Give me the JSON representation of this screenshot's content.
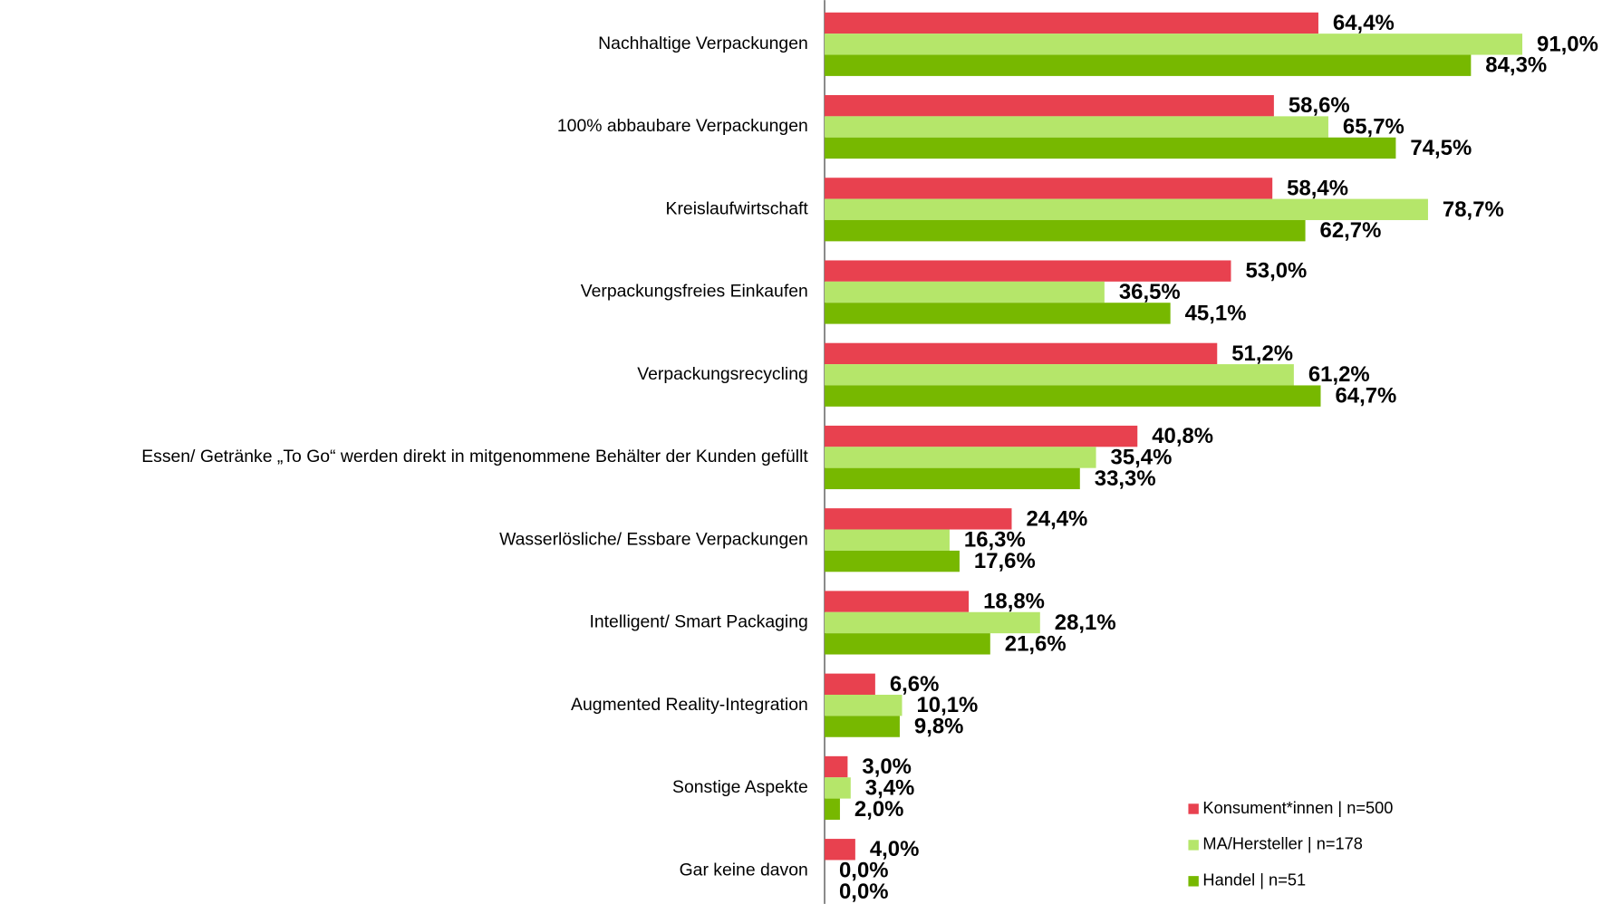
{
  "chart_data": {
    "type": "hbar",
    "categories": [
      "Nachhaltige Verpackungen",
      "100% abbaubare Verpackungen",
      "Kreislaufwirtschaft",
      "Verpackungsfreies Einkaufen",
      "Verpackungsrecycling",
      "Essen/ Getränke „To Go“ werden direkt in mitgenommene Behälter der Kunden gefüllt",
      "Wasserlösliche/ Essbare Verpackungen",
      "Intelligent/ Smart Packaging",
      "Augmented Reality-Integration",
      "Sonstige Aspekte",
      "Gar keine davon"
    ],
    "series": [
      {
        "name": "Konsument*innen | n=500",
        "color": "#e8414f",
        "values": [
          64.4,
          58.6,
          58.4,
          53.0,
          51.2,
          40.8,
          24.4,
          18.8,
          6.6,
          3.0,
          4.0
        ],
        "value_labels": [
          "64,4%",
          "58,6%",
          "58,4%",
          "53,0%",
          "51,2%",
          "40,8%",
          "24,4%",
          "18,8%",
          "6,6%",
          "3,0%",
          "4,0%"
        ]
      },
      {
        "name": "MA/Hersteller | n=178",
        "color": "#b5e66a",
        "values": [
          91.0,
          65.7,
          78.7,
          36.5,
          61.2,
          35.4,
          16.3,
          28.1,
          10.1,
          3.4,
          0.0
        ],
        "value_labels": [
          "91,0%",
          "65,7%",
          "78,7%",
          "36,5%",
          "61,2%",
          "35,4%",
          "16,3%",
          "28,1%",
          "10,1%",
          "3,4%",
          "0,0%"
        ]
      },
      {
        "name": "Handel | n=51",
        "color": "#77b800",
        "values": [
          84.3,
          74.5,
          62.7,
          45.1,
          64.7,
          33.3,
          17.6,
          21.6,
          9.8,
          2.0,
          0.0
        ],
        "value_labels": [
          "84,3%",
          "74,5%",
          "62,7%",
          "45,1%",
          "64,7%",
          "33,3%",
          "17,6%",
          "21,6%",
          "9,8%",
          "2,0%",
          "0,0%"
        ]
      }
    ],
    "xlim": [
      0,
      100
    ],
    "legend": "lower right"
  }
}
